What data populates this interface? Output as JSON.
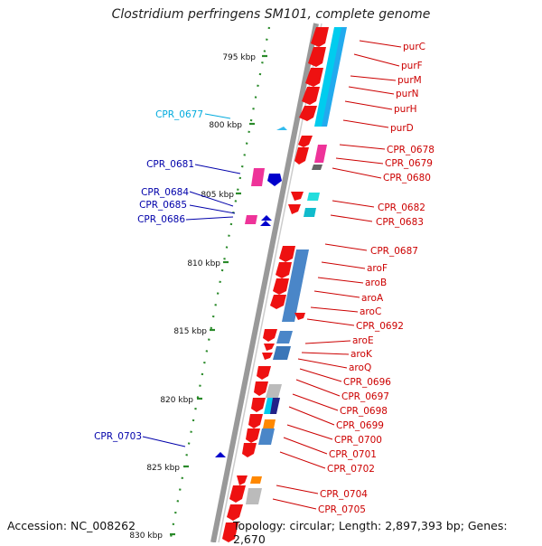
{
  "title": "Clostridium perfringens SM101, complete genome",
  "footer": {
    "accession": "Accession: NC_008262",
    "summary": "Topology: circular; Length: 2,897,393 bp; Genes: 2,670"
  },
  "colors": {
    "backbone": "#999999",
    "ruler_dots": "#2a8a2a",
    "label_red": "#cc0000",
    "label_blue": "#0000aa",
    "label_cyan": "#00aadd",
    "cds": "#ee1111",
    "cog_cyan": "#00ccee",
    "cog_blue": "#4a86c8",
    "cog_pink": "#ee3399",
    "gray": "#bbbbbb"
  },
  "scale": [
    {
      "label": "795 kbp"
    },
    {
      "label": "800 kbp"
    },
    {
      "label": "805 kbp"
    },
    {
      "label": "810 kbp"
    },
    {
      "label": "815 kbp"
    },
    {
      "label": "820 kbp"
    },
    {
      "label": "825 kbp"
    },
    {
      "label": "830 kbp"
    }
  ],
  "right_labels": [
    {
      "text": "purC"
    },
    {
      "text": "purF"
    },
    {
      "text": "purM"
    },
    {
      "text": "purN"
    },
    {
      "text": "purH"
    },
    {
      "text": "purD"
    },
    {
      "text": "CPR_0678"
    },
    {
      "text": "CPR_0679"
    },
    {
      "text": "CPR_0680"
    },
    {
      "text": "CPR_0682"
    },
    {
      "text": "CPR_0683"
    },
    {
      "text": "CPR_0687"
    },
    {
      "text": "aroF"
    },
    {
      "text": "aroB"
    },
    {
      "text": "aroA"
    },
    {
      "text": "aroC"
    },
    {
      "text": "CPR_0692"
    },
    {
      "text": "aroE"
    },
    {
      "text": "aroK"
    },
    {
      "text": "aroQ"
    },
    {
      "text": "CPR_0696"
    },
    {
      "text": "CPR_0697"
    },
    {
      "text": "CPR_0698"
    },
    {
      "text": "CPR_0699"
    },
    {
      "text": "CPR_0700"
    },
    {
      "text": "CPR_0701"
    },
    {
      "text": "CPR_0702"
    },
    {
      "text": "CPR_0704"
    },
    {
      "text": "CPR_0705"
    }
  ],
  "left_labels": [
    {
      "text": "CPR_0677",
      "color": "cyan"
    },
    {
      "text": "CPR_0681",
      "color": "blue"
    },
    {
      "text": "CPR_0684",
      "color": "blue"
    },
    {
      "text": "CPR_0685",
      "color": "blue"
    },
    {
      "text": "CPR_0686",
      "color": "blue"
    },
    {
      "text": "CPR_0703",
      "color": "blue"
    }
  ]
}
